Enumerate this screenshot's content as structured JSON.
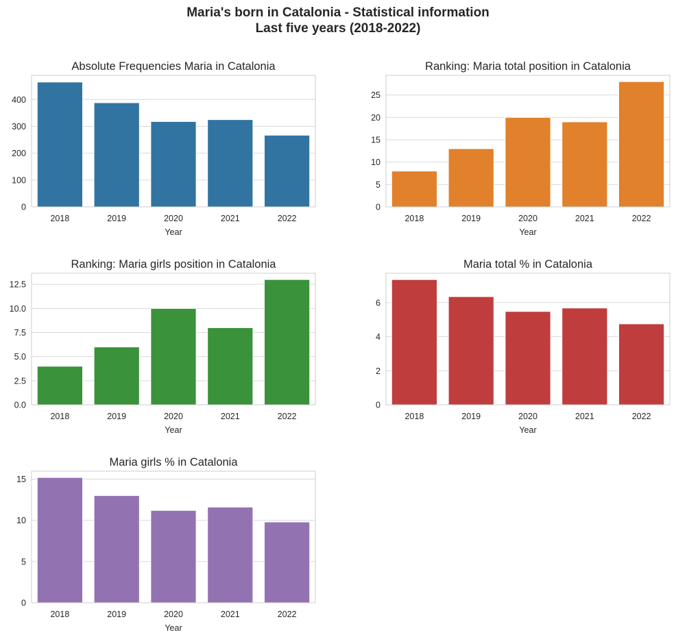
{
  "figure": {
    "title_line1": "Maria's born in Catalonia - Statistical information",
    "title_line2": "Last five years (2018-2022)"
  },
  "chart_data": [
    {
      "type": "bar",
      "title": "Absolute Frequencies Maria in Catalonia",
      "xlabel": "Year",
      "ylabel": "",
      "categories": [
        "2018",
        "2019",
        "2020",
        "2021",
        "2022"
      ],
      "values": [
        465,
        388,
        318,
        325,
        267
      ],
      "ylim": [
        0,
        490
      ],
      "yticks": [
        0,
        100,
        200,
        300,
        400
      ],
      "ytick_labels": [
        "0",
        "100",
        "200",
        "300",
        "400"
      ],
      "color": "#3274a1",
      "grid": true
    },
    {
      "type": "bar",
      "title": "Ranking: Maria total position in Catalonia",
      "xlabel": "Year",
      "ylabel": "",
      "categories": [
        "2018",
        "2019",
        "2020",
        "2021",
        "2022"
      ],
      "values": [
        8,
        13,
        20,
        19,
        28
      ],
      "ylim": [
        0,
        29.4
      ],
      "yticks": [
        0,
        5,
        10,
        15,
        20,
        25
      ],
      "ytick_labels": [
        "0",
        "5",
        "10",
        "15",
        "20",
        "25"
      ],
      "color": "#e1812c",
      "grid": true
    },
    {
      "type": "bar",
      "title": "Ranking: Maria girls position in Catalonia",
      "xlabel": "Year",
      "ylabel": "",
      "categories": [
        "2018",
        "2019",
        "2020",
        "2021",
        "2022"
      ],
      "values": [
        4,
        6,
        10,
        8,
        13
      ],
      "ylim": [
        0,
        13.65
      ],
      "yticks": [
        0,
        2.5,
        5,
        7.5,
        10,
        12.5
      ],
      "ytick_labels": [
        "0.0",
        "2.5",
        "5.0",
        "7.5",
        "10.0",
        "12.5"
      ],
      "color": "#3a923a",
      "grid": true
    },
    {
      "type": "bar",
      "title": "Maria total % in Catalonia",
      "xlabel": "Year",
      "ylabel": "",
      "categories": [
        "2018",
        "2019",
        "2020",
        "2021",
        "2022"
      ],
      "values": [
        7.35,
        6.35,
        5.48,
        5.68,
        4.75
      ],
      "ylim": [
        0,
        7.72
      ],
      "yticks": [
        0,
        2,
        4,
        6
      ],
      "ytick_labels": [
        "0",
        "2",
        "4",
        "6"
      ],
      "color": "#c03d3e",
      "grid": true
    },
    {
      "type": "bar",
      "title": "Maria girls % in Catalonia",
      "xlabel": "Year",
      "ylabel": "",
      "categories": [
        "2018",
        "2019",
        "2020",
        "2021",
        "2022"
      ],
      "values": [
        15.2,
        13.0,
        11.2,
        11.6,
        9.8
      ],
      "ylim": [
        0,
        15.96
      ],
      "yticks": [
        0,
        5,
        10,
        15
      ],
      "ytick_labels": [
        "0",
        "5",
        "10",
        "15"
      ],
      "color": "#9372b2",
      "grid": true
    }
  ],
  "style": {
    "grid_color": "#d9d9d9",
    "frame_color": "#cccccc",
    "bar_edge_color": "#ffffff",
    "text_color": "#262626"
  }
}
